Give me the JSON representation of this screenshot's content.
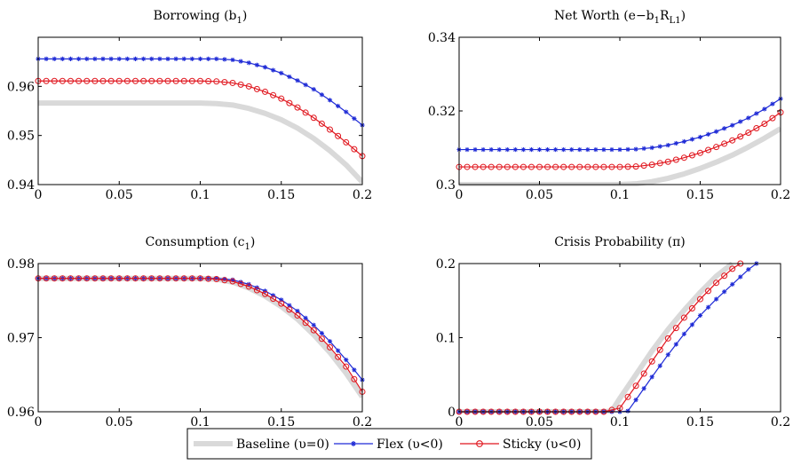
{
  "chart_data": [
    {
      "type": "line",
      "title": "Borrowing (b",
      "title_sub": "1",
      "title_tail": ")",
      "xlim": [
        0,
        0.2
      ],
      "ylim": [
        0.94,
        0.97
      ],
      "xticks": [
        "0",
        "0.05",
        "0.1",
        "0.15",
        "0.2"
      ],
      "yticks": [
        "0.94",
        "0.95",
        "0.96"
      ],
      "yticks_values": [
        0.94,
        0.95,
        0.96
      ],
      "series": [
        {
          "name": "Baseline (υ=0)",
          "x": [
            0,
            0.02,
            0.04,
            0.06,
            0.08,
            0.1,
            0.11,
            0.12,
            0.13,
            0.14,
            0.15,
            0.16,
            0.17,
            0.18,
            0.19,
            0.2
          ],
          "y": [
            0.9566,
            0.9566,
            0.9566,
            0.9566,
            0.9566,
            0.9566,
            0.9565,
            0.9562,
            0.9555,
            0.9545,
            0.9532,
            0.9515,
            0.9494,
            0.9469,
            0.944,
            0.9405
          ]
        },
        {
          "name": "Flex (υ<0)",
          "x": [
            0,
            0.02,
            0.04,
            0.06,
            0.08,
            0.1,
            0.11,
            0.12,
            0.13,
            0.14,
            0.15,
            0.16,
            0.17,
            0.18,
            0.19,
            0.2
          ],
          "y": [
            0.9656,
            0.9656,
            0.9656,
            0.9656,
            0.9656,
            0.9656,
            0.9656,
            0.9654,
            0.9648,
            0.9639,
            0.9627,
            0.9612,
            0.9594,
            0.9572,
            0.9548,
            0.9521
          ]
        },
        {
          "name": "Sticky (υ<0)",
          "x": [
            0,
            0.02,
            0.04,
            0.06,
            0.08,
            0.1,
            0.11,
            0.12,
            0.13,
            0.14,
            0.15,
            0.16,
            0.17,
            0.18,
            0.19,
            0.2
          ],
          "y": [
            0.9611,
            0.9611,
            0.9611,
            0.9611,
            0.9611,
            0.9611,
            0.961,
            0.9607,
            0.96,
            0.9589,
            0.9575,
            0.9557,
            0.9536,
            0.9512,
            0.9486,
            0.9458
          ]
        }
      ]
    },
    {
      "type": "line",
      "title": "Net Worth (e−b",
      "title_sub": "1",
      "title_mid": "R",
      "title_sub2": "L1",
      "title_tail": ")",
      "xlim": [
        0,
        0.2
      ],
      "ylim": [
        0.3,
        0.34
      ],
      "xticks": [
        "0",
        "0.05",
        "0.1",
        "0.15",
        "0.2"
      ],
      "yticks": [
        "0.3",
        "0.32",
        "0.34"
      ],
      "yticks_values": [
        0.3,
        0.32,
        0.34
      ],
      "series": [
        {
          "name": "Baseline (υ=0)",
          "x": [
            0,
            0.02,
            0.04,
            0.06,
            0.08,
            0.1,
            0.11,
            0.12,
            0.13,
            0.14,
            0.15,
            0.16,
            0.17,
            0.18,
            0.19,
            0.2
          ],
          "y": [
            0.3,
            0.3,
            0.3,
            0.3,
            0.3,
            0.3,
            0.3002,
            0.3008,
            0.3017,
            0.3029,
            0.3044,
            0.3061,
            0.308,
            0.3102,
            0.3126,
            0.3152
          ]
        },
        {
          "name": "Flex (υ<0)",
          "x": [
            0,
            0.02,
            0.04,
            0.06,
            0.08,
            0.1,
            0.11,
            0.12,
            0.13,
            0.14,
            0.15,
            0.16,
            0.17,
            0.18,
            0.19,
            0.2
          ],
          "y": [
            0.3095,
            0.3095,
            0.3095,
            0.3095,
            0.3095,
            0.3095,
            0.3096,
            0.31,
            0.3107,
            0.3117,
            0.3129,
            0.3144,
            0.3161,
            0.3181,
            0.3205,
            0.3233
          ]
        },
        {
          "name": "Sticky (υ<0)",
          "x": [
            0,
            0.02,
            0.04,
            0.06,
            0.08,
            0.1,
            0.11,
            0.12,
            0.13,
            0.14,
            0.15,
            0.16,
            0.17,
            0.18,
            0.19,
            0.2
          ],
          "y": [
            0.3048,
            0.3048,
            0.3048,
            0.3048,
            0.3048,
            0.3048,
            0.3049,
            0.3054,
            0.3062,
            0.3073,
            0.3086,
            0.3102,
            0.312,
            0.3141,
            0.3165,
            0.3196
          ]
        }
      ]
    },
    {
      "type": "line",
      "title": "Consumption (c",
      "title_sub": "1",
      "title_tail": ")",
      "xlim": [
        0,
        0.2
      ],
      "ylim": [
        0.96,
        0.98
      ],
      "xticks": [
        "0",
        "0.05",
        "0.1",
        "0.15",
        "0.2"
      ],
      "yticks": [
        "0.96",
        "0.97",
        "0.98"
      ],
      "yticks_values": [
        0.96,
        0.97,
        0.98
      ],
      "series": [
        {
          "name": "Baseline (υ=0)",
          "x": [
            0,
            0.02,
            0.04,
            0.06,
            0.08,
            0.1,
            0.11,
            0.12,
            0.13,
            0.14,
            0.15,
            0.16,
            0.17,
            0.18,
            0.19,
            0.2
          ],
          "y": [
            0.978,
            0.978,
            0.978,
            0.978,
            0.978,
            0.978,
            0.9779,
            0.9775,
            0.9767,
            0.9756,
            0.9742,
            0.9725,
            0.9704,
            0.968,
            0.9652,
            0.962
          ]
        },
        {
          "name": "Flex (υ<0)",
          "x": [
            0,
            0.02,
            0.04,
            0.06,
            0.08,
            0.1,
            0.11,
            0.12,
            0.13,
            0.14,
            0.15,
            0.16,
            0.17,
            0.18,
            0.19,
            0.2
          ],
          "y": [
            0.978,
            0.978,
            0.978,
            0.978,
            0.978,
            0.978,
            0.978,
            0.9778,
            0.9772,
            0.9763,
            0.9751,
            0.9736,
            0.9717,
            0.9695,
            0.967,
            0.9643
          ]
        },
        {
          "name": "Sticky (υ<0)",
          "x": [
            0,
            0.02,
            0.04,
            0.06,
            0.08,
            0.1,
            0.11,
            0.12,
            0.13,
            0.14,
            0.15,
            0.16,
            0.17,
            0.18,
            0.19,
            0.2
          ],
          "y": [
            0.978,
            0.978,
            0.978,
            0.978,
            0.978,
            0.978,
            0.9779,
            0.9776,
            0.9769,
            0.9759,
            0.9746,
            0.973,
            0.971,
            0.9687,
            0.9661,
            0.9627
          ]
        }
      ]
    },
    {
      "type": "line",
      "title": "Crisis Probability (π)",
      "xlim": [
        0,
        0.2
      ],
      "ylim": [
        0,
        0.2
      ],
      "xticks": [
        "0",
        "0.05",
        "0.1",
        "0.15",
        "0.2"
      ],
      "yticks": [
        "0",
        "0.1",
        "0.2"
      ],
      "yticks_values": [
        0,
        0.1,
        0.2
      ],
      "series": [
        {
          "name": "Baseline (υ=0)",
          "x": [
            0,
            0.02,
            0.04,
            0.06,
            0.08,
            0.09,
            0.095,
            0.1,
            0.11,
            0.12,
            0.13,
            0.14,
            0.15,
            0.16,
            0.17
          ],
          "y": [
            0,
            0,
            0,
            0,
            0,
            0,
            0.001,
            0.018,
            0.05,
            0.082,
            0.111,
            0.137,
            0.161,
            0.183,
            0.2
          ]
        },
        {
          "name": "Flex (υ<0)",
          "x": [
            0,
            0.02,
            0.04,
            0.06,
            0.08,
            0.1,
            0.105,
            0.11,
            0.12,
            0.13,
            0.14,
            0.15,
            0.16,
            0.17,
            0.18,
            0.185
          ],
          "y": [
            0,
            0,
            0,
            0,
            0,
            0,
            0.001,
            0.016,
            0.047,
            0.077,
            0.105,
            0.13,
            0.152,
            0.172,
            0.192,
            0.2
          ]
        },
        {
          "name": "Sticky (υ<0)",
          "x": [
            0,
            0.02,
            0.04,
            0.06,
            0.08,
            0.09,
            0.1,
            0.11,
            0.12,
            0.13,
            0.14,
            0.15,
            0.16,
            0.17,
            0.175
          ],
          "y": [
            0,
            0,
            0,
            0,
            0,
            0,
            0.005,
            0.035,
            0.068,
            0.099,
            0.127,
            0.152,
            0.174,
            0.193,
            0.2
          ]
        }
      ]
    }
  ],
  "legend": {
    "baseline": "Baseline (υ=0)",
    "flex": "Flex (υ<0)",
    "sticky": "Sticky (υ<0)"
  },
  "colors": {
    "baseline": "#d9d9d9",
    "flex": "#1f2bd6",
    "sticky": "#e0161e"
  }
}
